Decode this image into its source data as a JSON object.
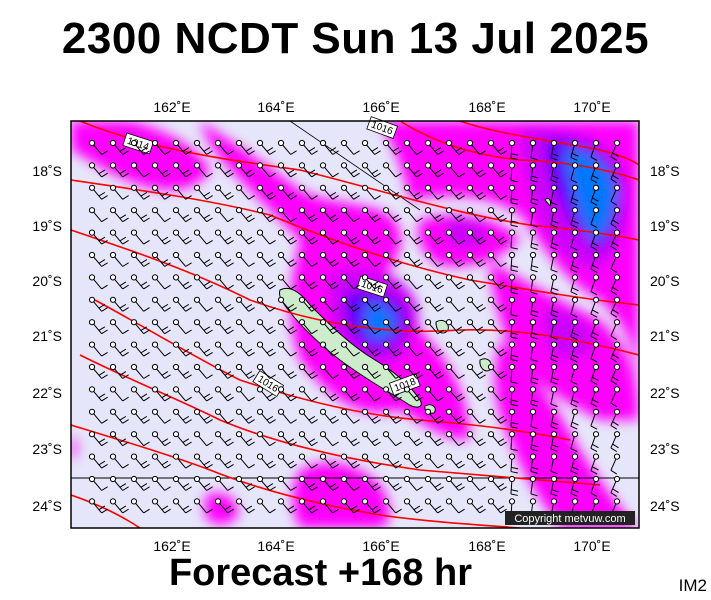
{
  "title": "2300 NCDT Sun 13 Jul 2025",
  "forecast": "Forecast +168 hr",
  "im_label": "IM2",
  "copyright": "Copyright metvuw.com",
  "lon_ticks": [
    "162˚E",
    "164˚E",
    "166˚E",
    "168˚E",
    "170˚E"
  ],
  "lat_ticks": [
    "18˚S",
    "19˚S",
    "20˚S",
    "21˚S",
    "22˚S",
    "23˚S",
    "24˚S"
  ],
  "isobar_labels": [
    "1014",
    "1016",
    "1016",
    "1018",
    "1016"
  ],
  "colors": {
    "background": "#e6e6fa",
    "rain_light": "#ff00ff",
    "rain_medium": "#cc00ff",
    "rain_heavy": "#5a00ff",
    "rain_max": "#0077ff",
    "isobar": "#ff0000"
  }
}
